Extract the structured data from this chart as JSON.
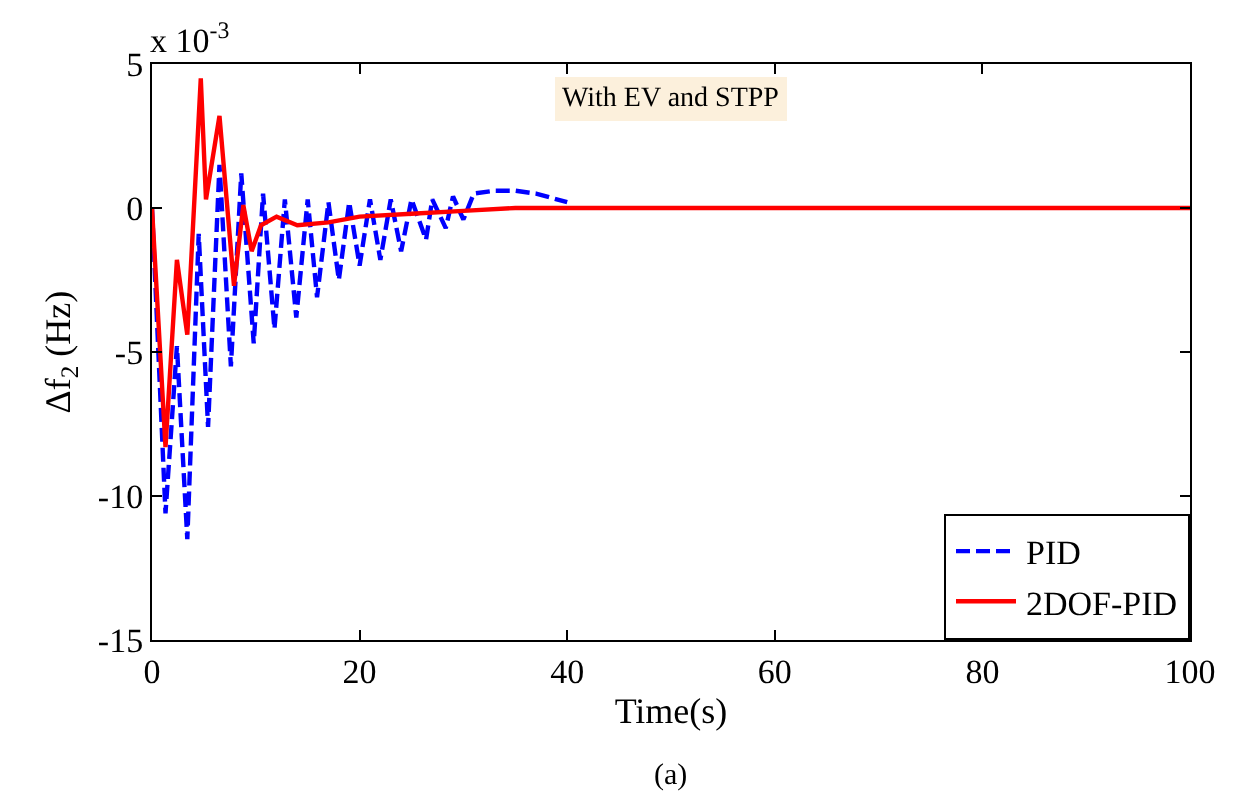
{
  "chart_data": {
    "type": "line",
    "xlabel": "Time(s)",
    "ylabel": "Δf$_{2}$ (Hz)",
    "xlim": [
      0,
      100
    ],
    "xticks": [
      0,
      20,
      40,
      60,
      80,
      100
    ],
    "ylim": [
      -15,
      5
    ],
    "yticks": [
      -15,
      -10,
      -5,
      0,
      5
    ],
    "grid": false,
    "legend": "bottom right",
    "marker": "none",
    "annotations": [
      "x 10$^{-3}$",
      "With EV and STPP",
      "(a)"
    ],
    "series": [
      {
        "name": "PID",
        "color": "#0000ff",
        "line_style": "dashed",
        "x": [
          0,
          1.3,
          2.4,
          3.4,
          4.5,
          5.4,
          6.5,
          7.6,
          8.6,
          9.8,
          10.7,
          11.8,
          12.8,
          13.9,
          15,
          15.9,
          17,
          18,
          19,
          20,
          21,
          22,
          23,
          24,
          25,
          26.4,
          27,
          28.3,
          29,
          30,
          31,
          33,
          35,
          37,
          40
        ],
        "values": [
          0,
          -10.6,
          -4.8,
          -11.5,
          -0.9,
          -7.6,
          1.5,
          -5.5,
          1.2,
          -4.7,
          0.5,
          -4.2,
          0.3,
          -3.8,
          0.3,
          -3.1,
          0.2,
          -2.5,
          0.2,
          -2,
          0.3,
          -1.8,
          0.3,
          -1.5,
          0.3,
          -1.1,
          0.3,
          -0.7,
          0.4,
          -0.4,
          0.5,
          0.6,
          0.6,
          0.5,
          0.2
        ]
      },
      {
        "name": "2DOF-PID",
        "color": "#ff0000",
        "line_style": "solid",
        "x": [
          0,
          1.3,
          2.4,
          3.4,
          4.7,
          5.2,
          6.5,
          7.9,
          8.8,
          9.6,
          10.5,
          12,
          14,
          17,
          20,
          25,
          30,
          35,
          40,
          50,
          60,
          80,
          100
        ],
        "values": [
          0,
          -8.3,
          -1.8,
          -4.4,
          4.5,
          0.3,
          3.2,
          -2.7,
          0.1,
          -1.5,
          -0.6,
          -0.3,
          -0.6,
          -0.5,
          -0.3,
          -0.2,
          -0.1,
          0,
          0,
          0,
          0,
          0,
          0
        ]
      }
    ]
  }
}
